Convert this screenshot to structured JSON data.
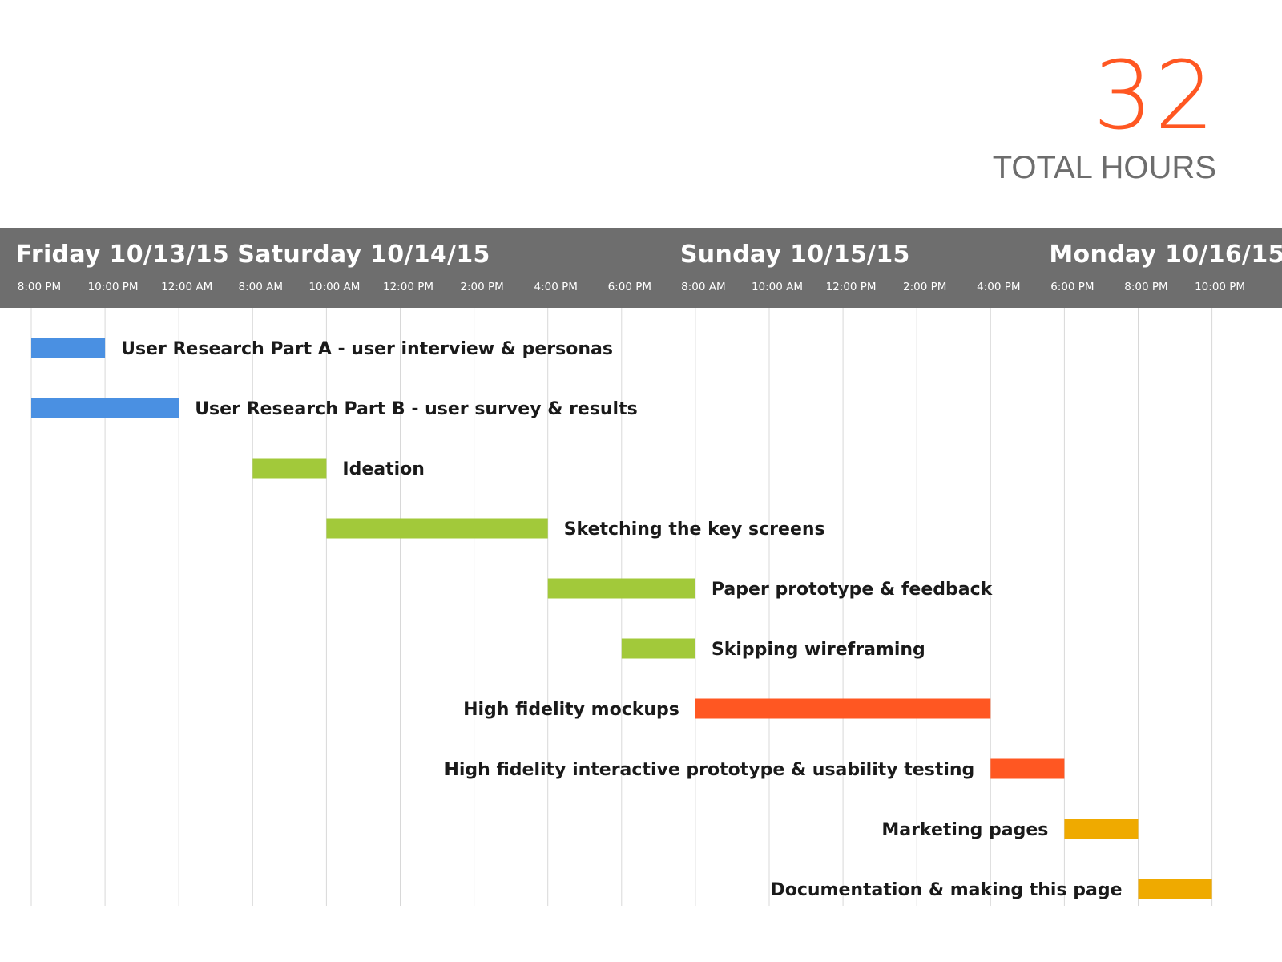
{
  "summary": {
    "total_value": "32",
    "total_label": "TOTAL HOURS"
  },
  "colors": {
    "accent": "#ff5722",
    "header_band": "#6e6e6e",
    "research": "#4a90e2",
    "design": "#a2c93a",
    "build": "#ff5722",
    "marketing": "#efaa00",
    "gridline": "#d8d8d8"
  },
  "chart_data": {
    "type": "gantt",
    "days": [
      {
        "label": "Friday 10/13/15",
        "start_slot": 0
      },
      {
        "label": "Saturday 10/14/15",
        "start_slot": 3
      },
      {
        "label": "Sunday 10/15/15",
        "start_slot": 9
      },
      {
        "label": "Monday 10/16/15",
        "start_slot": 14
      }
    ],
    "time_slots": [
      "8:00 PM",
      "10:00 PM",
      "12:00 AM",
      "8:00 AM",
      "10:00 AM",
      "12:00 PM",
      "2:00 PM",
      "4:00 PM",
      "6:00 PM",
      "8:00 AM",
      "10:00 AM",
      "12:00 PM",
      "2:00 PM",
      "4:00 PM",
      "6:00 PM",
      "8:00 PM",
      "10:00 PM"
    ],
    "tasks": [
      {
        "label": "User Research Part A - user interview & personas",
        "start": "Friday 10/13/15 8:00 PM",
        "end": "Friday 10/13/15 10:00 PM",
        "start_slot": 0,
        "end_slot": 1,
        "color": "#4a90e2",
        "label_side": "right"
      },
      {
        "label": "User Research Part B - user survey & results",
        "start": "Friday 10/13/15 8:00 PM",
        "end": "Saturday 10/14/15 12:00 AM",
        "start_slot": 0,
        "end_slot": 2,
        "color": "#4a90e2",
        "label_side": "right"
      },
      {
        "label": "Ideation",
        "start": "Saturday 10/14/15 8:00 AM",
        "end": "Saturday 10/14/15 10:00 AM",
        "start_slot": 3,
        "end_slot": 4,
        "color": "#a2c93a",
        "label_side": "right"
      },
      {
        "label": "Sketching the key screens",
        "start": "Saturday 10/14/15 10:00 AM",
        "end": "Saturday 10/14/15 4:00 PM",
        "start_slot": 4,
        "end_slot": 7,
        "color": "#a2c93a",
        "label_side": "right"
      },
      {
        "label": "Paper prototype & feedback",
        "start": "Saturday 10/14/15 4:00 PM",
        "end": "Sunday 10/15/15 8:00 AM",
        "start_slot": 7,
        "end_slot": 9,
        "color": "#a2c93a",
        "label_side": "right"
      },
      {
        "label": "Skipping wireframing",
        "start": "Saturday 10/14/15 6:00 PM",
        "end": "Sunday 10/15/15 8:00 AM",
        "start_slot": 8,
        "end_slot": 9,
        "color": "#a2c93a",
        "label_side": "right"
      },
      {
        "label": "High fidelity mockups",
        "start": "Sunday 10/15/15 8:00 AM",
        "end": "Sunday 10/15/15 4:00 PM",
        "start_slot": 9,
        "end_slot": 13,
        "color": "#ff5722",
        "label_side": "left"
      },
      {
        "label": "High fidelity interactive prototype & usability testing",
        "start": "Sunday 10/15/15 4:00 PM",
        "end": "Monday 10/16/15 6:00 PM",
        "start_slot": 13,
        "end_slot": 14,
        "color": "#ff5722",
        "label_side": "left"
      },
      {
        "label": "Marketing pages",
        "start": "Monday 10/16/15 6:00 PM",
        "end": "Monday 10/16/15 8:00 PM",
        "start_slot": 14,
        "end_slot": 15,
        "color": "#efaa00",
        "label_side": "left"
      },
      {
        "label": "Documentation & making this page",
        "start": "Monday 10/16/15 8:00 PM",
        "end": "Monday 10/16/15 10:00 PM",
        "start_slot": 15,
        "end_slot": 16,
        "color": "#efaa00",
        "label_side": "left"
      }
    ],
    "grid": true
  }
}
